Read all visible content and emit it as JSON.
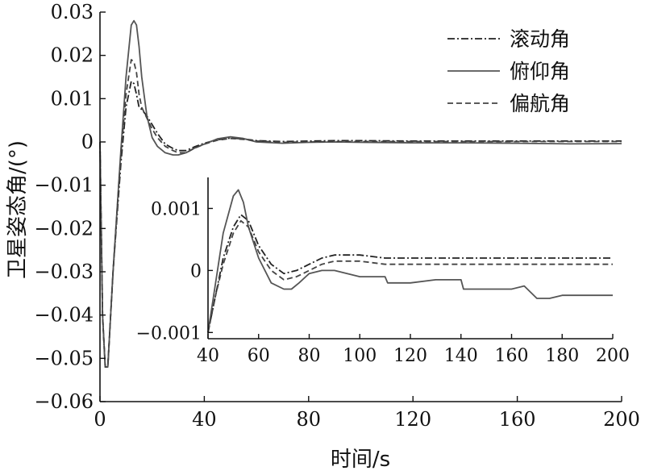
{
  "chart_data": [
    {
      "type": "line",
      "xlabel": "时间/s",
      "ylabel": "卫星姿态角/(°)",
      "xlim": [
        0,
        200
      ],
      "ylim": [
        -0.06,
        0.03
      ],
      "xticks": [
        0,
        40,
        80,
        120,
        160,
        200
      ],
      "xtick_labels": [
        "0",
        "40",
        "80",
        "120",
        "160",
        "200"
      ],
      "yticks": [
        0.03,
        0.02,
        0.01,
        0,
        -0.01,
        -0.02,
        -0.03,
        -0.04,
        -0.05,
        -0.06
      ],
      "ytick_labels": [
        "0.03",
        "0.02",
        "0.01",
        "0",
        "−0.01",
        "−0.02",
        "−0.03",
        "−0.04",
        "−0.05",
        "−0.06"
      ],
      "grid": false,
      "legend_position": "top-right",
      "series": [
        {
          "name": "滚动角",
          "style": "dash-dot",
          "color": "#222222",
          "x": [
            0,
            1,
            2,
            3,
            5,
            8,
            10,
            12,
            13,
            14,
            15,
            16,
            18,
            20,
            22,
            25,
            28,
            30,
            33,
            36,
            40,
            45,
            50,
            55,
            60,
            70,
            80,
            90,
            100,
            120,
            140,
            160,
            180,
            200
          ],
          "y": [
            0.0,
            -0.04,
            -0.052,
            -0.052,
            -0.03,
            -0.005,
            0.008,
            0.014,
            0.0135,
            0.011,
            0.008,
            0.0075,
            0.006,
            0.004,
            0.002,
            -0.0005,
            -0.0015,
            -0.002,
            -0.002,
            -0.0012,
            -0.0003,
            0.0005,
            0.0009,
            0.0007,
            0.0003,
            0.0001,
            0.0002,
            0.0003,
            0.0003,
            0.0002,
            0.0002,
            0.0002,
            0.0002,
            0.0002
          ]
        },
        {
          "name": "俯仰角",
          "style": "solid",
          "color": "#555555",
          "x": [
            0,
            1,
            2,
            3,
            5,
            8,
            10,
            12,
            13,
            14,
            15,
            16,
            18,
            20,
            22,
            25,
            28,
            30,
            33,
            36,
            40,
            45,
            50,
            55,
            60,
            70,
            80,
            90,
            100,
            120,
            140,
            160,
            180,
            200
          ],
          "y": [
            0.0,
            -0.04,
            -0.052,
            -0.052,
            -0.03,
            -0.002,
            0.015,
            0.027,
            0.028,
            0.027,
            0.022,
            0.015,
            0.006,
            0.001,
            -0.001,
            -0.0025,
            -0.003,
            -0.003,
            -0.0025,
            -0.0015,
            -0.0005,
            0.0007,
            0.0012,
            0.0008,
            0.0,
            -0.0003,
            -0.0001,
            0.0,
            -0.0001,
            -0.0002,
            -0.0002,
            -0.0003,
            -0.00045,
            -0.0004
          ]
        },
        {
          "name": "偏航角",
          "style": "dashed",
          "color": "#444444",
          "x": [
            0,
            1,
            2,
            3,
            5,
            8,
            10,
            12,
            13,
            14,
            15,
            16,
            18,
            20,
            22,
            25,
            28,
            30,
            33,
            36,
            40,
            45,
            50,
            55,
            60,
            70,
            80,
            90,
            100,
            120,
            140,
            160,
            180,
            200
          ],
          "y": [
            0.0,
            -0.04,
            -0.052,
            -0.052,
            -0.03,
            -0.003,
            0.011,
            0.019,
            0.0185,
            0.016,
            0.011,
            0.008,
            0.0055,
            0.003,
            0.001,
            -0.001,
            -0.002,
            -0.0025,
            -0.0025,
            -0.0015,
            -0.0005,
            0.0004,
            0.0008,
            0.0006,
            0.0002,
            -0.0001,
            0.0,
            0.0001,
            0.0001,
            0.0001,
            0.0001,
            0.0001,
            0.0001,
            0.0001
          ]
        }
      ]
    },
    {
      "type": "line",
      "placement": "inset",
      "xlim": [
        40,
        200
      ],
      "ylim": [
        -0.0011,
        0.0015
      ],
      "xticks": [
        40,
        60,
        80,
        100,
        120,
        140,
        160,
        180,
        200
      ],
      "xtick_labels": [
        "40",
        "60",
        "80",
        "100",
        "120",
        "140",
        "160",
        "180",
        "200"
      ],
      "yticks": [
        0.001,
        0,
        -0.001
      ],
      "ytick_labels": [
        "0.001",
        "0",
        "−0.001"
      ],
      "grid": false,
      "series": [
        {
          "name": "滚动角",
          "style": "dash-dot",
          "color": "#222222",
          "x": [
            40,
            43,
            46,
            50,
            53,
            56,
            60,
            65,
            70,
            75,
            80,
            85,
            90,
            95,
            100,
            110,
            120,
            140,
            160,
            180,
            200
          ],
          "y": [
            -0.001,
            -0.0004,
            0.0002,
            0.0007,
            0.0009,
            0.0008,
            0.0004,
            0.0001,
            -5e-05,
            0.0,
            0.0001,
            0.0002,
            0.00025,
            0.00025,
            0.00025,
            0.0002,
            0.0002,
            0.0002,
            0.0002,
            0.0002,
            0.0002
          ]
        },
        {
          "name": "俯仰角",
          "style": "solid",
          "color": "#555555",
          "x": [
            40,
            43,
            46,
            50,
            52,
            54,
            56,
            60,
            65,
            70,
            73,
            76,
            80,
            85,
            90,
            95,
            100,
            110,
            111,
            120,
            130,
            140,
            141,
            150,
            160,
            165,
            170,
            175,
            180,
            190,
            200
          ],
          "y": [
            -0.001,
            -0.0002,
            0.0006,
            0.0012,
            0.0013,
            0.0011,
            0.0007,
            0.0002,
            -0.0002,
            -0.0003,
            -0.0003,
            -0.0002,
            -5e-05,
            0.0,
            0.0,
            -5e-05,
            -0.0001,
            -0.0001,
            -0.0002,
            -0.0002,
            -0.00015,
            -0.00015,
            -0.0003,
            -0.0003,
            -0.0003,
            -0.00025,
            -0.00045,
            -0.00045,
            -0.0004,
            -0.0004,
            -0.0004
          ]
        },
        {
          "name": "偏航角",
          "style": "dashed",
          "color": "#444444",
          "x": [
            40,
            43,
            46,
            50,
            53,
            56,
            60,
            65,
            70,
            75,
            80,
            85,
            90,
            100,
            110,
            120,
            140,
            160,
            180,
            200
          ],
          "y": [
            -0.001,
            -0.0004,
            0.0001,
            0.0006,
            0.0008,
            0.0007,
            0.0003,
            0.0,
            -0.00015,
            -0.0001,
            0.0,
            0.0001,
            0.00015,
            0.00015,
            0.0001,
            0.0001,
            0.0001,
            0.0001,
            0.0001,
            0.0001
          ]
        }
      ]
    }
  ]
}
